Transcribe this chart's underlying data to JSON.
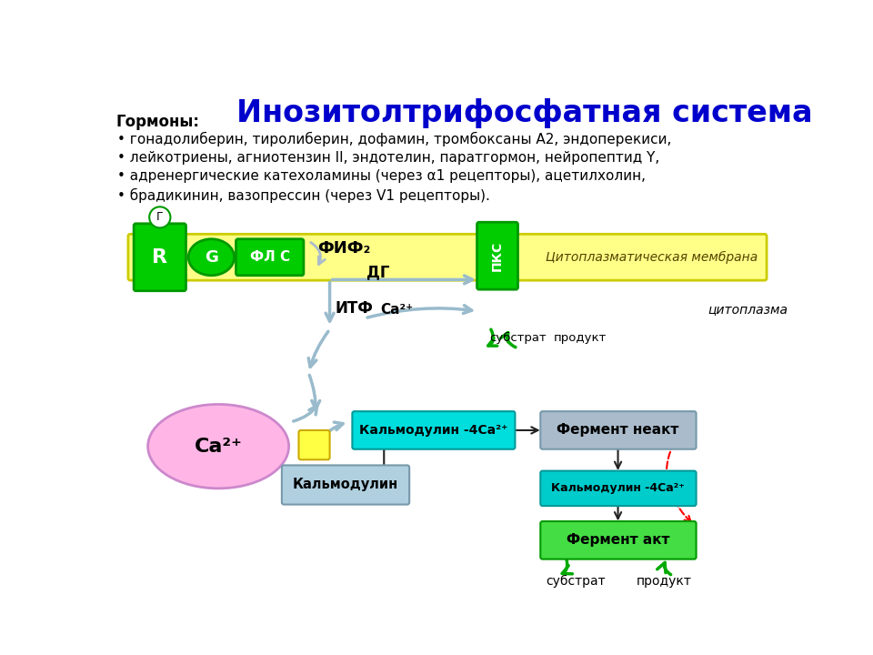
{
  "title": "Инозитолтрифосфатная система",
  "title_color": "#0000CC",
  "title_fontsize": 24,
  "bg_color": "#FFFFFF",
  "hormones_title": "Гормоны:",
  "hormones_lines": [
    "гонадолиберин, тиролиберин, дофамин, тромбоксаны А2, эндоперекиси,",
    "лейкотриены, агниотензин II, эндотелин, паратгормон, нейропептид Y,",
    "адренергические катехоламины (через α1 рецепторы), ацетилхолин,",
    "брадикинин, вазопрессин (через V1 рецепторы)."
  ],
  "green_color": "#00CC00",
  "green_dark": "#009900",
  "cyan_color": "#00DDDD",
  "cyan2_color": "#00CCCC",
  "pink_color": "#FFB6E6",
  "light_blue_color": "#B0D0E0",
  "gray_blue_color": "#AABCCC",
  "yellow_color": "#FFFF88",
  "arrow_color": "#99BBCC",
  "membrane_color": "#FFFF88",
  "membrane_border": "#CCCC00"
}
